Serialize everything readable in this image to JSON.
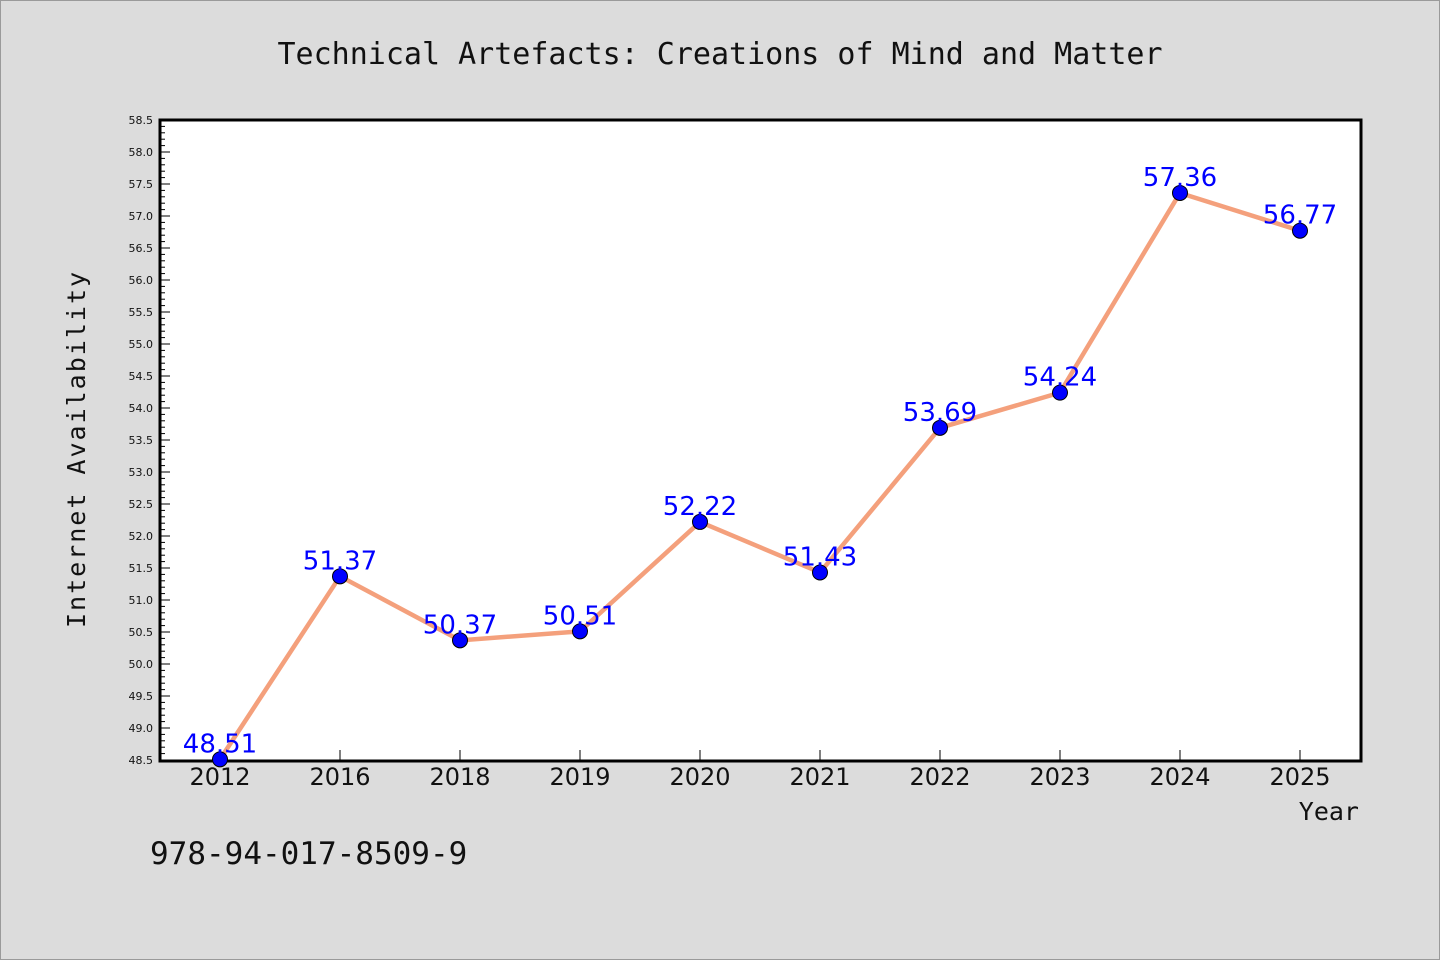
{
  "chart_data": {
    "type": "line",
    "title": "Technical Artefacts: Creations of Mind and Matter",
    "xlabel": "Year",
    "ylabel": "Internet Availability",
    "categories": [
      "2012",
      "2016",
      "2018",
      "2019",
      "2020",
      "2021",
      "2022",
      "2023",
      "2024",
      "2025"
    ],
    "series": [
      {
        "values": [
          48.51,
          51.37,
          50.37,
          50.51,
          52.22,
          51.43,
          53.69,
          54.24,
          57.36,
          56.77
        ],
        "labels": [
          "48.51",
          "51.37",
          "50.37",
          "50.51",
          "52.22",
          "51.43",
          "53.69",
          "54.24",
          "57.36",
          "56.77"
        ],
        "line_color": "#f4a07c",
        "marker_color": "#0000ff"
      }
    ],
    "ylim": [
      48.5,
      58.5
    ],
    "yticks": [
      "48.5",
      "49.0",
      "49.5",
      "50.0",
      "50.5",
      "51.0",
      "51.5",
      "52.0",
      "52.5",
      "53.0",
      "53.5",
      "54.0",
      "54.5",
      "55.0",
      "55.5",
      "56.0",
      "56.5",
      "57.0",
      "57.5",
      "58.0",
      "58.5"
    ],
    "grid": false,
    "legend": "none",
    "data_label_color": "#0000ff"
  },
  "footer": {
    "isbn": "978-94-017-8509-9"
  }
}
